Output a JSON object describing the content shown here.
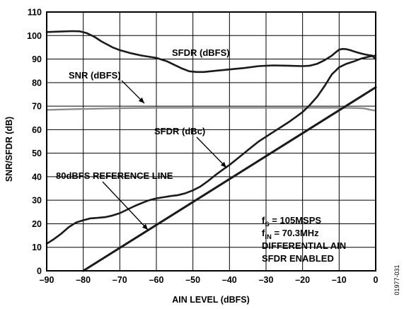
{
  "chart_data": {
    "type": "line",
    "title": "",
    "xlabel": "AIN LEVEL (dBFS)",
    "ylabel": "SNR/SFDR (dB)",
    "xlim": [
      -90,
      0
    ],
    "ylim": [
      0,
      110
    ],
    "xticks": [
      -90,
      -80,
      -70,
      -60,
      -50,
      -40,
      -30,
      -20,
      -10,
      0
    ],
    "xtick_labels": [
      "–90",
      "–80",
      "–70",
      "–60",
      "–50",
      "–40",
      "–30",
      "–20",
      "–10",
      "0"
    ],
    "yticks": [
      0,
      10,
      20,
      30,
      40,
      50,
      60,
      70,
      80,
      90,
      100,
      110
    ],
    "grid": true,
    "series": [
      {
        "name": "SFDR (dBFS)",
        "color": "#1a1a1a",
        "x": [
          -90,
          -86,
          -83,
          -81,
          -79,
          -77,
          -75,
          -72,
          -70,
          -67,
          -64,
          -60,
          -57,
          -55,
          -53,
          -51,
          -49,
          -47,
          -44,
          -40,
          -36,
          -32,
          -28,
          -24,
          -20,
          -18,
          -16,
          -14,
          -12,
          -11,
          -10,
          -9,
          -8,
          -7,
          -6,
          -5,
          -4,
          -3,
          -2,
          -1,
          0
        ],
        "y": [
          101.5,
          101.7,
          101.9,
          101.8,
          101.0,
          99.5,
          97.5,
          95.0,
          93.8,
          92.5,
          91.5,
          90.5,
          89.0,
          87.5,
          86.0,
          84.8,
          84.5,
          84.5,
          85.0,
          85.6,
          86.2,
          87.0,
          87.3,
          87.2,
          87.0,
          87.2,
          88.0,
          89.5,
          91.5,
          92.8,
          94.0,
          94.3,
          94.2,
          93.8,
          93.3,
          92.8,
          92.4,
          92.0,
          91.7,
          91.5,
          90.0
        ]
      },
      {
        "name": "SNR (dBFS)",
        "color": "#8c8c8c",
        "x": [
          -90,
          -85,
          -80,
          -70,
          -60,
          -50,
          -40,
          -30,
          -20,
          -10,
          -5,
          -3,
          -2,
          -1,
          0
        ],
        "y": [
          68.4,
          68.6,
          68.8,
          69.1,
          69.3,
          69.3,
          69.3,
          69.3,
          69.3,
          69.3,
          69.2,
          69.0,
          68.6,
          68.3,
          68.1
        ]
      },
      {
        "name": "SFDR (dBc)",
        "color": "#1a1a1a",
        "x": [
          -90,
          -88,
          -86,
          -84,
          -82,
          -80,
          -78,
          -76,
          -74,
          -72,
          -70,
          -68,
          -66,
          -64,
          -62,
          -60,
          -58,
          -56,
          -54,
          -52,
          -50,
          -48,
          -46,
          -44,
          -42,
          -40,
          -38,
          -36,
          -34,
          -32,
          -30,
          -28,
          -26,
          -24,
          -22,
          -20,
          -18,
          -16,
          -14,
          -12,
          -10,
          -8,
          -6,
          -4,
          -2,
          0
        ],
        "y": [
          11.5,
          13.5,
          15.8,
          18.5,
          20.5,
          21.5,
          22.3,
          22.5,
          22.8,
          23.5,
          24.5,
          26.0,
          27.5,
          28.8,
          30.0,
          30.8,
          31.3,
          31.8,
          32.2,
          33.0,
          34.2,
          35.8,
          38.0,
          40.5,
          42.8,
          45.0,
          47.5,
          50.0,
          52.5,
          55.0,
          57.0,
          59.0,
          61.0,
          63.0,
          65.2,
          67.5,
          70.5,
          74.0,
          78.5,
          83.5,
          86.5,
          88.0,
          89.0,
          90.2,
          91.0,
          91.5
        ]
      },
      {
        "name": "80dBFS REFERENCE LINE",
        "color": "#1a1a1a",
        "x": [
          -80,
          0
        ],
        "y": [
          0,
          78
        ]
      }
    ],
    "annotations": [
      "SFDR (dBFS)",
      "SNR (dBFS)",
      "SFDR (dBc)",
      "80dBFS REFERENCE LINE"
    ],
    "conditions": [
      "f",
      "S",
      " = 105MSPS",
      "f",
      "IN",
      " = 70.3MHz",
      "DIFFERENTIAL AIN",
      "SFDR ENABLED"
    ],
    "figure_id": "01977-031"
  }
}
